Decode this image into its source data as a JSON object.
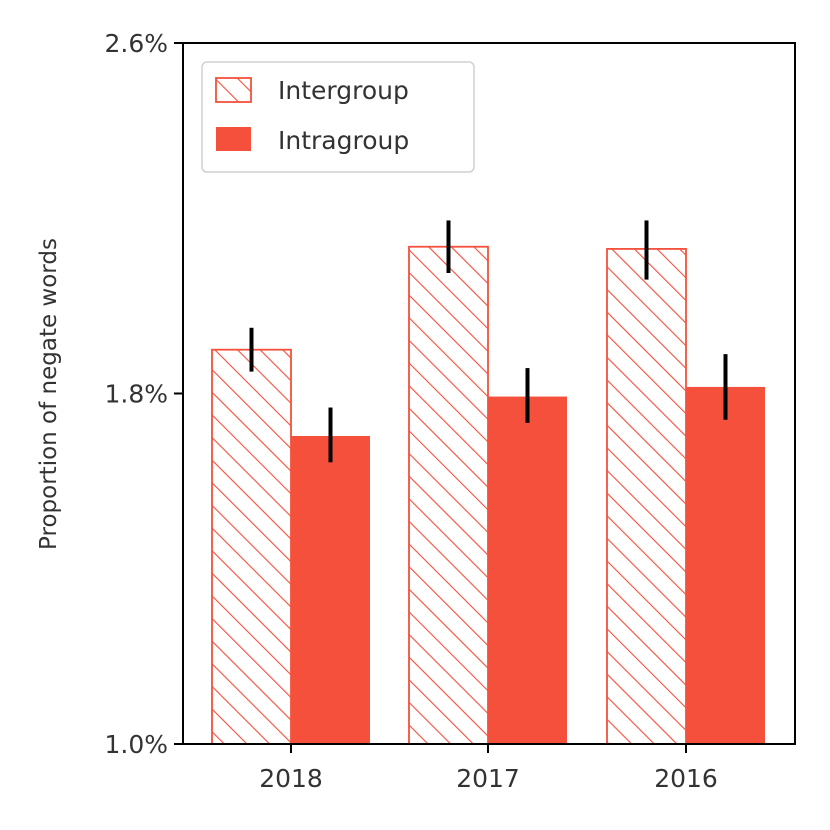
{
  "chart_data": {
    "type": "bar",
    "title": "",
    "xlabel": "",
    "ylabel": "Proportion of negate words",
    "ylim": [
      1.0,
      2.6
    ],
    "y_ticks": [
      1.0,
      1.8,
      2.6
    ],
    "y_tick_labels": [
      "1.0%",
      "1.8%",
      "2.6%"
    ],
    "categories": [
      "2018",
      "2017",
      "2016"
    ],
    "series": [
      {
        "name": "Intergroup",
        "style": "hatched",
        "values": [
          1.9,
          2.135,
          2.13
        ],
        "err_low": [
          0.05,
          0.06,
          0.07
        ],
        "err_high": [
          0.05,
          0.06,
          0.065
        ]
      },
      {
        "name": "Intragroup",
        "style": "solid",
        "values": [
          1.703,
          1.793,
          1.815
        ],
        "err_low": [
          0.06,
          0.06,
          0.075
        ],
        "err_high": [
          0.065,
          0.065,
          0.075
        ]
      }
    ],
    "legend_position": "top-left",
    "color": "#f4503b",
    "error_color": "#000000"
  }
}
